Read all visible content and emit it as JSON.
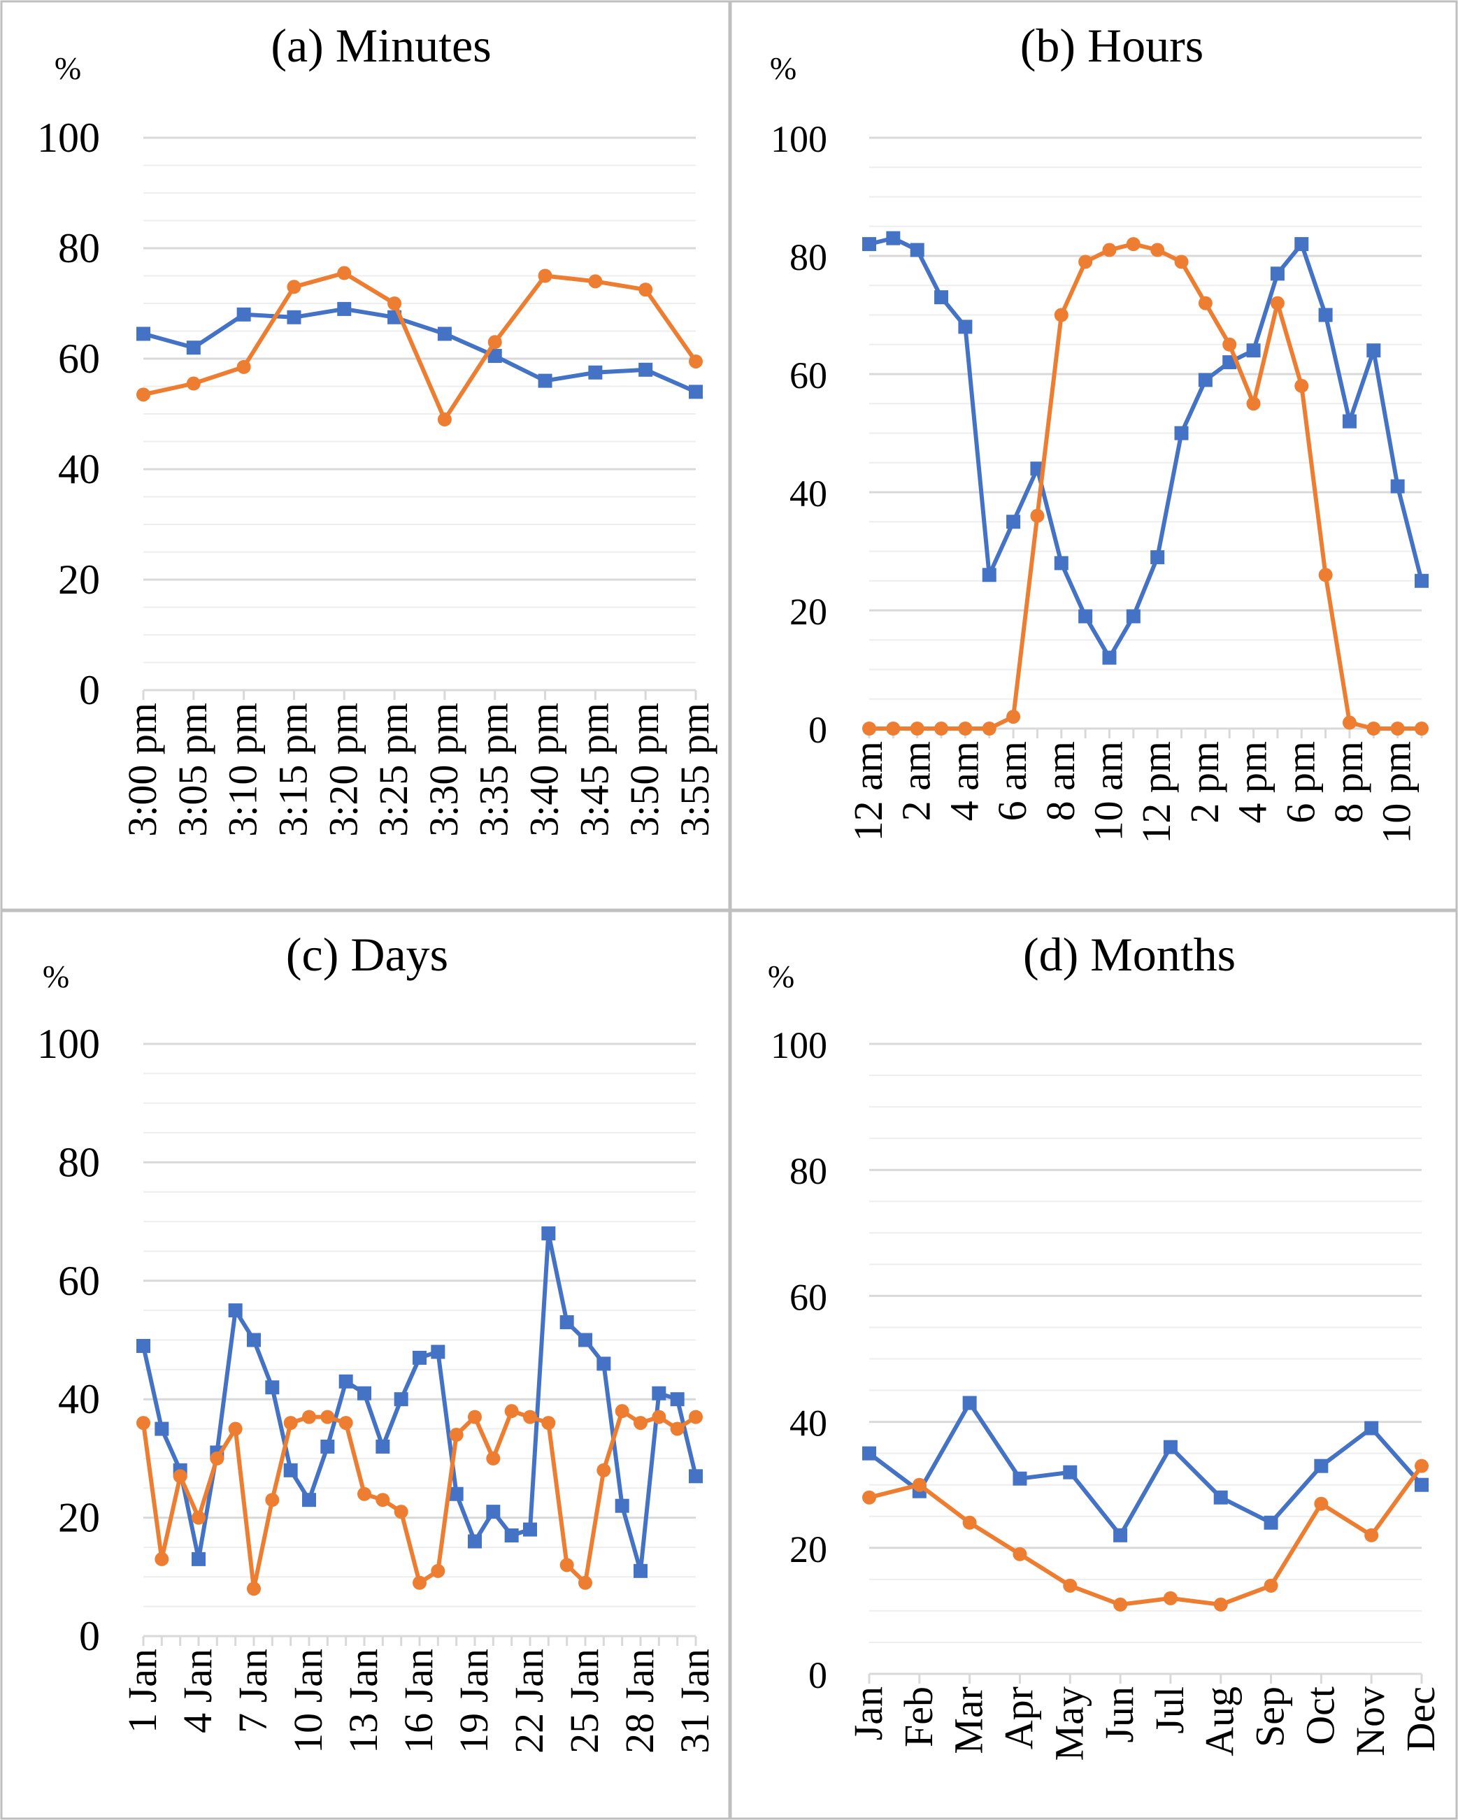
{
  "colors": {
    "series_blue": "#4472C4",
    "series_orange": "#ED7D31",
    "grid_major": "#d9d9d9",
    "grid_minor": "#eeeeee",
    "panel_border": "#bfbfbf"
  },
  "chart_data": [
    {
      "type": "line",
      "title": "(a) Minutes",
      "ylabel": "%",
      "ylim": [
        0,
        100
      ],
      "yticks": [
        0,
        20,
        40,
        60,
        80,
        100
      ],
      "grid": true,
      "categories": [
        "3:00 pm",
        "3:05 pm",
        "3:10 pm",
        "3:15 pm",
        "3:20 pm",
        "3:25 pm",
        "3:30 pm",
        "3:35 pm",
        "3:40 pm",
        "3:45 pm",
        "3:50 pm",
        "3:55 pm"
      ],
      "xtick_labels": [
        "3:00 pm",
        "3:05 pm",
        "3:10 pm",
        "3:15 pm",
        "3:20 pm",
        "3:25 pm",
        "3:30 pm",
        "3:35 pm",
        "3:40 pm",
        "3:45 pm",
        "3:50 pm",
        "3:55 pm"
      ],
      "series": [
        {
          "color": "#4472C4",
          "marker": "square",
          "values": [
            64.5,
            62,
            68,
            67.5,
            69,
            67.5,
            64.5,
            60.5,
            56,
            57.5,
            58,
            54
          ]
        },
        {
          "color": "#ED7D31",
          "marker": "circle",
          "values": [
            53.5,
            55.5,
            58.5,
            73,
            75.5,
            70,
            49,
            63,
            75,
            74,
            72.5,
            59.5
          ]
        }
      ]
    },
    {
      "type": "line",
      "title": "(b) Hours",
      "ylabel": "%",
      "ylim": [
        0,
        100
      ],
      "yticks": [
        0,
        20,
        40,
        60,
        80,
        100
      ],
      "grid": true,
      "categories": [
        "12 am",
        "1 am",
        "2 am",
        "3 am",
        "4 am",
        "5 am",
        "6 am",
        "7 am",
        "8 am",
        "9 am",
        "10 am",
        "11 am",
        "12 pm",
        "1 pm",
        "2 pm",
        "3 pm",
        "4 pm",
        "5 pm",
        "6 pm",
        "7 pm",
        "8 pm",
        "9 pm",
        "10 pm",
        "11 pm"
      ],
      "xtick_labels": [
        "12 am",
        "",
        "2 am",
        "",
        "4 am",
        "",
        "6 am",
        "",
        "8 am",
        "",
        "10 am",
        "",
        "12 pm",
        "",
        "2 pm",
        "",
        "4 pm",
        "",
        "6 pm",
        "",
        "8 pm",
        "",
        "10 pm",
        ""
      ],
      "series": [
        {
          "color": "#4472C4",
          "marker": "square",
          "values": [
            82,
            83,
            81,
            73,
            68,
            26,
            35,
            44,
            28,
            19,
            12,
            19,
            29,
            50,
            59,
            62,
            64,
            77,
            82,
            70,
            52,
            64,
            41,
            25
          ]
        },
        {
          "color": "#ED7D31",
          "marker": "circle",
          "values": [
            0,
            0,
            0,
            0,
            0,
            0,
            2,
            36,
            70,
            79,
            81,
            82,
            81,
            79,
            72,
            65,
            55,
            72,
            58,
            26,
            1,
            0,
            0,
            0
          ]
        }
      ]
    },
    {
      "type": "line",
      "title": "(c) Days",
      "ylabel": "%",
      "ylim": [
        0,
        100
      ],
      "yticks": [
        0,
        20,
        40,
        60,
        80,
        100
      ],
      "grid": true,
      "categories": [
        "1 Jan",
        "2 Jan",
        "3 Jan",
        "4 Jan",
        "5 Jan",
        "6 Jan",
        "7 Jan",
        "8 Jan",
        "9 Jan",
        "10 Jan",
        "11 Jan",
        "12 Jan",
        "13 Jan",
        "14 Jan",
        "15 Jan",
        "16 Jan",
        "17 Jan",
        "18 Jan",
        "19 Jan",
        "20 Jan",
        "21 Jan",
        "22 Jan",
        "23 Jan",
        "24 Jan",
        "25 Jan",
        "26 Jan",
        "27 Jan",
        "28 Jan",
        "29 Jan",
        "30 Jan",
        "31 Jan"
      ],
      "xtick_labels": [
        "1 Jan",
        "",
        "",
        "4 Jan",
        "",
        "",
        "7 Jan",
        "",
        "",
        "10 Jan",
        "",
        "",
        "13 Jan",
        "",
        "",
        "16 Jan",
        "",
        "",
        "19 Jan",
        "",
        "",
        "22 Jan",
        "",
        "",
        "25 Jan",
        "",
        "",
        "28 Jan",
        "",
        "",
        "31 Jan"
      ],
      "series": [
        {
          "color": "#4472C4",
          "marker": "square",
          "values": [
            49,
            35,
            28,
            13,
            31,
            55,
            50,
            42,
            28,
            23,
            32,
            43,
            41,
            32,
            40,
            47,
            48,
            24,
            16,
            21,
            17,
            18,
            68,
            53,
            50,
            46,
            22,
            11,
            41,
            40,
            27
          ]
        },
        {
          "color": "#ED7D31",
          "marker": "circle",
          "values": [
            36,
            13,
            27,
            20,
            30,
            35,
            8,
            23,
            36,
            37,
            37,
            36,
            24,
            23,
            21,
            9,
            11,
            34,
            37,
            30,
            38,
            37,
            36,
            12,
            9,
            28,
            38,
            36,
            37,
            35,
            37
          ]
        }
      ]
    },
    {
      "type": "line",
      "title": "(d) Months",
      "ylabel": "%",
      "ylim": [
        0,
        100
      ],
      "yticks": [
        0,
        20,
        40,
        60,
        80,
        100
      ],
      "grid": true,
      "categories": [
        "Jan",
        "Feb",
        "Mar",
        "Apr",
        "May",
        "Jun",
        "Jul",
        "Aug",
        "Sep",
        "Oct",
        "Nov",
        "Dec"
      ],
      "xtick_labels": [
        "Jan",
        "Feb",
        "Mar",
        "Apr",
        "May",
        "Jun",
        "Jul",
        "Aug",
        "Sep",
        "Oct",
        "Nov",
        "Dec"
      ],
      "series": [
        {
          "color": "#4472C4",
          "marker": "square",
          "values": [
            35,
            29,
            43,
            31,
            32,
            22,
            36,
            28,
            24,
            33,
            39,
            30
          ]
        },
        {
          "color": "#ED7D31",
          "marker": "circle",
          "values": [
            28,
            30,
            24,
            19,
            14,
            11,
            12,
            11,
            14,
            27,
            22,
            33
          ]
        }
      ]
    }
  ]
}
